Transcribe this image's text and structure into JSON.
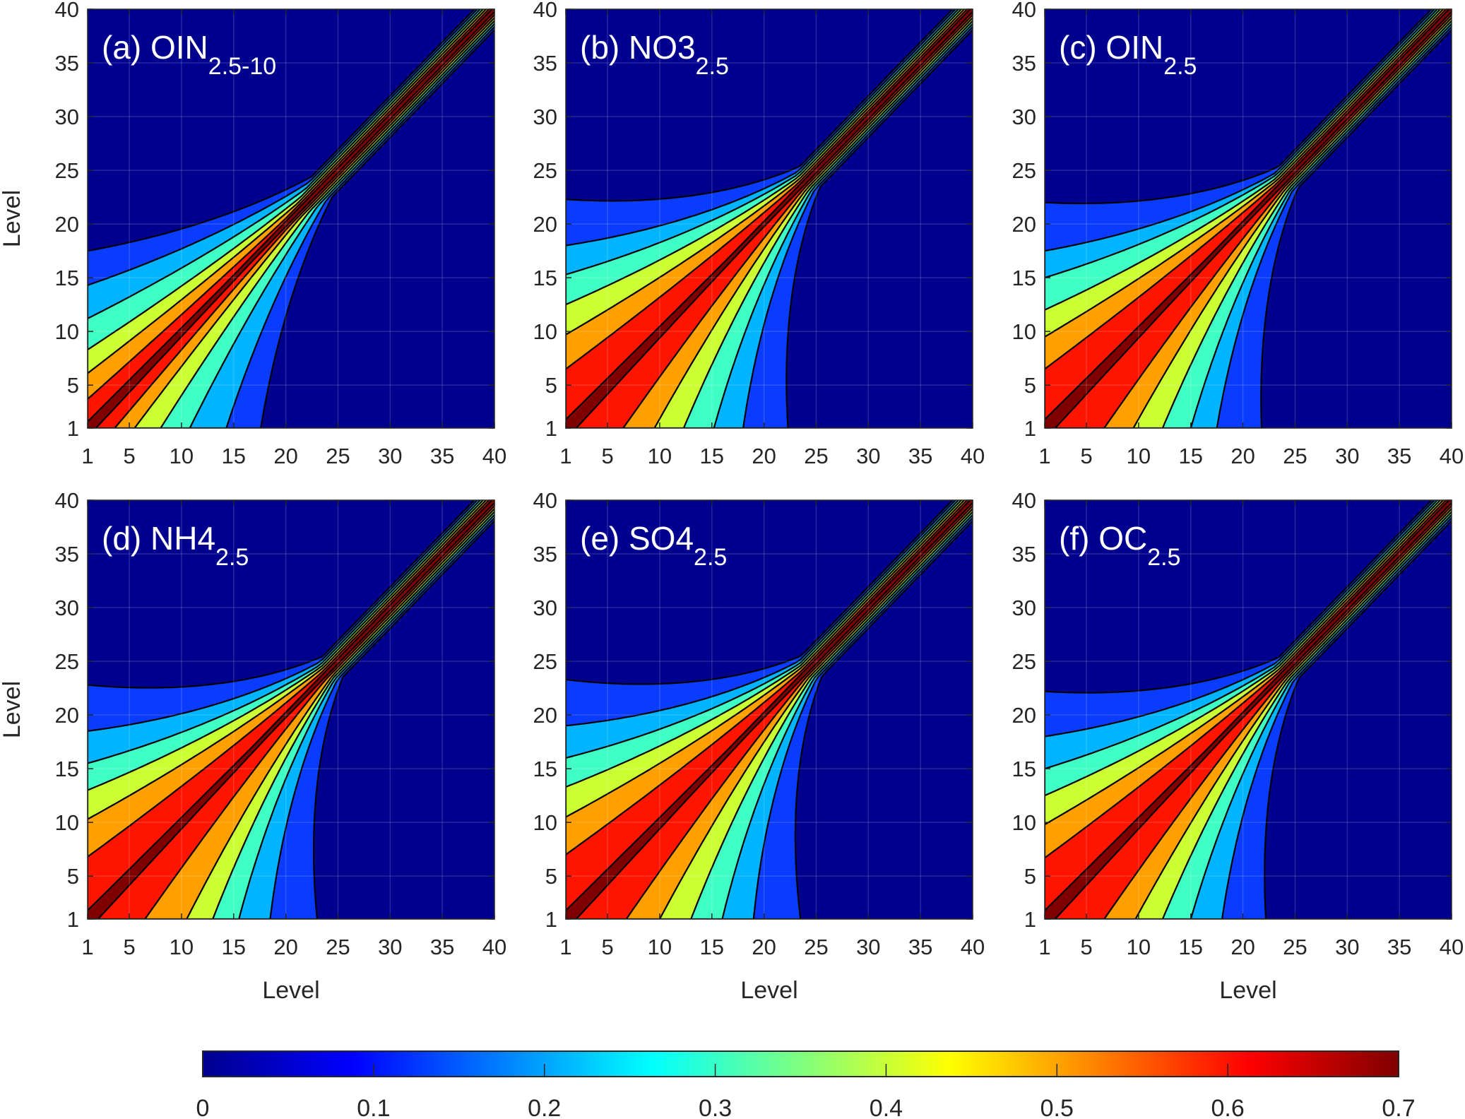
{
  "chart_data": {
    "type": "heatmap",
    "subtype": "filled-contour",
    "x_ticks": [
      1,
      5,
      10,
      15,
      20,
      25,
      30,
      35,
      40
    ],
    "y_ticks": [
      1,
      5,
      10,
      15,
      20,
      25,
      30,
      35,
      40
    ],
    "xlim": [
      1,
      40
    ],
    "ylim": [
      1,
      40
    ],
    "xlabel": "Level",
    "ylabel": "Level",
    "grid": true,
    "contour_levels": [
      0.1,
      0.2,
      0.3,
      0.4,
      0.5,
      0.6,
      0.7
    ],
    "band_colors": [
      "#00008F",
      "#0A3CFF",
      "#00B4FF",
      "#40FFC4",
      "#CCFF33",
      "#FFA000",
      "#FF1400",
      "#800000"
    ],
    "panels": [
      {
        "label": "(a) OIN",
        "sub": "2.5-10",
        "upper_y_at_x1": [
          17.5,
          14.3,
          11.2,
          8.3,
          6.1,
          3.7,
          1.6
        ],
        "lower_x_at_y1": [
          17.6,
          14.3,
          10.8,
          8.0,
          5.5,
          3.6,
          1.8
        ]
      },
      {
        "label": "(b) NO3",
        "sub": "2.5",
        "upper_y_at_x1": [
          22.3,
          18.0,
          15.3,
          12.5,
          9.7,
          6.5,
          1.8
        ],
        "lower_x_at_y1": [
          22.3,
          18.0,
          15.2,
          12.3,
          9.5,
          6.5,
          2.0
        ]
      },
      {
        "label": "(c) OIN",
        "sub": "2.5",
        "upper_y_at_x1": [
          22.0,
          17.5,
          15.0,
          12.0,
          9.5,
          6.5,
          1.8
        ],
        "lower_x_at_y1": [
          21.8,
          17.5,
          15.0,
          12.3,
          9.5,
          6.7,
          2.0
        ]
      },
      {
        "label": "(d) NH4",
        "sub": "2.5",
        "upper_y_at_x1": [
          22.8,
          18.5,
          15.5,
          13.0,
          10.3,
          6.8,
          1.8
        ],
        "lower_x_at_y1": [
          23.0,
          18.5,
          15.5,
          13.0,
          10.5,
          6.5,
          2.0
        ]
      },
      {
        "label": "(e) SO4",
        "sub": "2.5",
        "upper_y_at_x1": [
          23.3,
          19.0,
          16.0,
          13.3,
          10.5,
          7.0,
          1.8
        ],
        "lower_x_at_y1": [
          23.5,
          19.0,
          16.0,
          13.0,
          10.0,
          6.8,
          2.0
        ]
      },
      {
        "label": "(f) OC",
        "sub": "2.5",
        "upper_y_at_x1": [
          22.2,
          18.0,
          15.0,
          12.5,
          9.8,
          6.7,
          1.8
        ],
        "lower_x_at_y1": [
          22.2,
          18.0,
          15.0,
          12.3,
          9.7,
          6.7,
          2.0
        ]
      }
    ],
    "colorbar": {
      "ticks": [
        "0",
        "0.1",
        "0.2",
        "0.3",
        "0.4",
        "0.5",
        "0.6",
        "0.7"
      ],
      "range": [
        0,
        0.7
      ],
      "colormap": "jet"
    }
  }
}
